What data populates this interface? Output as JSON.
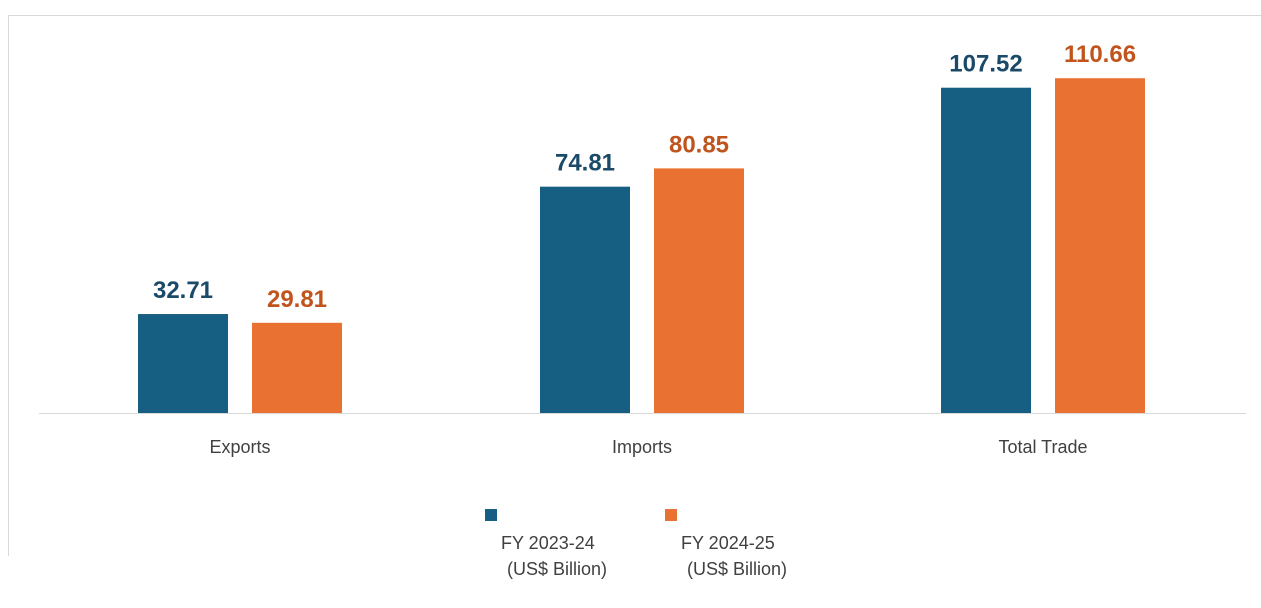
{
  "chart_data": {
    "type": "bar",
    "categories": [
      "Exports",
      "Imports",
      "Total Trade"
    ],
    "series": [
      {
        "name": "FY 2023-24 (US$ Billion)",
        "name_line1": "FY 2023-24",
        "name_line2": "(US$ Billion)",
        "color": "#175f82",
        "label_color": "#1b4a68",
        "values": [
          32.71,
          74.81,
          107.52
        ]
      },
      {
        "name": "FY 2024-25 (US$ Billion)",
        "name_line1": "FY 2024-25",
        "name_line2": "(US$ Billion)",
        "color": "#e97132",
        "label_color": "#c0541c",
        "values": [
          29.81,
          80.85,
          110.66
        ]
      }
    ],
    "title": "",
    "xlabel": "",
    "ylabel": "",
    "ylim": [
      0,
      118
    ],
    "grid": false,
    "legend_position": "bottom"
  }
}
